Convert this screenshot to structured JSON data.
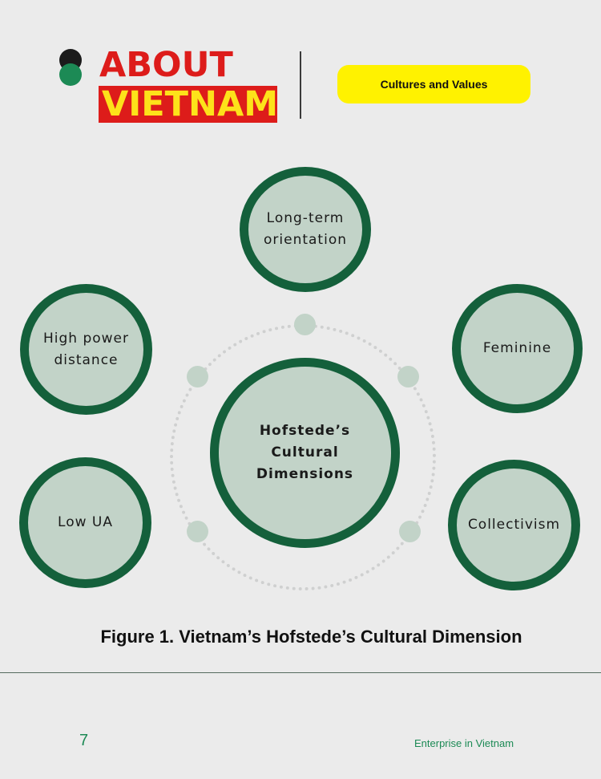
{
  "header": {
    "title_line1": "ABOUT",
    "title_line2": "VIETNAM",
    "section_label": "Cultures and Values"
  },
  "diagram": {
    "center": "Hofstede’s Cultural Dimensions",
    "nodes": [
      "Long-term orientation",
      "High power distance",
      "Feminine",
      "Low UA",
      "Collectivism"
    ]
  },
  "caption": "Figure 1. Vietnam’s Hofstede’s Cultural Dimension",
  "footer": {
    "page_number": "7",
    "publication": "Enterprise in Vietnam"
  },
  "colors": {
    "brand_red": "#dd1c1a",
    "brand_yellow": "#fde21a",
    "circle_border": "#14603b",
    "circle_fill": "#c2d3c8",
    "footer_green": "#1c8a55"
  }
}
